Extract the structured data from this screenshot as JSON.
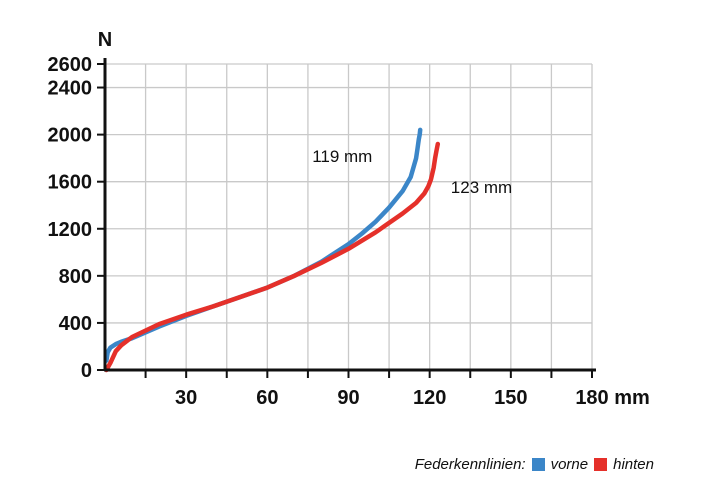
{
  "colors": {
    "vorne": "#3b86c8",
    "hinten": "#e5302a",
    "grid": "#c9c9c9",
    "axis": "#111111"
  },
  "legend": {
    "title": "Federkennlinien:",
    "vorne": "vorne",
    "hinten": "hinten"
  },
  "chart_data": {
    "type": "line",
    "title": "",
    "xlabel": "mm",
    "ylabel": "N",
    "xlim": [
      0,
      180
    ],
    "ylim": [
      0,
      2600
    ],
    "xticks": [
      30,
      60,
      90,
      120,
      150,
      180
    ],
    "xtick_labels": [
      "30",
      "60",
      "90",
      "120",
      "150",
      "180"
    ],
    "xminor": [
      15,
      45,
      75,
      105,
      135,
      165
    ],
    "yticks": [
      0,
      400,
      800,
      1200,
      1600,
      2000,
      2400,
      2600
    ],
    "ytick_labels": [
      "0",
      "400",
      "800",
      "1200",
      "1600",
      "2000",
      "2400",
      "2600"
    ],
    "ygrid": [
      400,
      800,
      1200,
      1600,
      2000,
      2400,
      2600
    ],
    "grid": true,
    "series": [
      {
        "name": "vorne",
        "label": "119 mm",
        "x": [
          0.5,
          1,
          2,
          4,
          6,
          10,
          20,
          30,
          40,
          50,
          60,
          70,
          80,
          90,
          95,
          100,
          105,
          110,
          113,
          114,
          115,
          115.5,
          116,
          116.3,
          116.5
        ],
        "y": [
          80,
          150,
          190,
          220,
          240,
          270,
          370,
          460,
          540,
          620,
          700,
          800,
          920,
          1070,
          1160,
          1260,
          1380,
          1520,
          1640,
          1720,
          1800,
          1880,
          1960,
          2000,
          2040
        ]
      },
      {
        "name": "hinten",
        "label": "123 mm",
        "x": [
          0.5,
          1,
          2,
          3,
          4,
          6,
          10,
          20,
          30,
          40,
          50,
          60,
          70,
          80,
          90,
          100,
          110,
          115,
          118,
          119.5,
          120.5,
          121.5,
          122,
          122.5,
          123
        ],
        "y": [
          0,
          20,
          60,
          110,
          160,
          210,
          280,
          390,
          470,
          540,
          620,
          700,
          800,
          910,
          1030,
          1170,
          1330,
          1420,
          1500,
          1560,
          1620,
          1720,
          1800,
          1860,
          1920
        ]
      }
    ],
    "annotations": [
      {
        "text": "119 mm",
        "series": "vorne"
      },
      {
        "text": "123 mm",
        "series": "hinten"
      }
    ]
  }
}
